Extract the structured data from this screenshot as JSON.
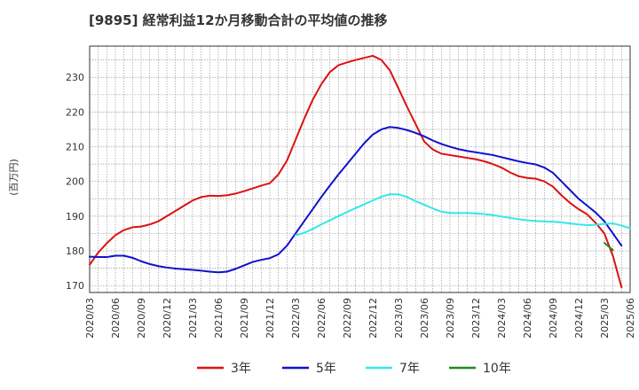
{
  "chart_data": {
    "type": "line",
    "title": "[9895]  経常利益12か月移動合計の平均値の推移",
    "ylabel": "(百万円)",
    "xlabel": "",
    "ylim": [
      168,
      239
    ],
    "yticks": [
      170,
      180,
      190,
      200,
      210,
      220,
      230
    ],
    "xticks": [
      "2020/03",
      "2020/06",
      "2020/09",
      "2020/12",
      "2021/03",
      "2021/06",
      "2021/09",
      "2021/12",
      "2022/03",
      "2022/06",
      "2022/09",
      "2022/12",
      "2023/03",
      "2023/06",
      "2023/09",
      "2023/12",
      "2024/03",
      "2024/06",
      "2024/09",
      "2024/12",
      "2025/03",
      "2025/06"
    ],
    "grid": true,
    "legend_position": "bottom",
    "series": [
      {
        "name": "3年",
        "color": "#dd1111",
        "start_index": 0,
        "values": [
          176.0,
          179.5,
          182.2,
          184.5,
          186.0,
          186.8,
          187.0,
          187.6,
          188.5,
          190.0,
          191.5,
          193.0,
          194.5,
          195.5,
          195.9,
          195.8,
          196.0,
          196.5,
          197.2,
          198.0,
          198.8,
          199.5,
          202.0,
          206.0,
          212.0,
          218.0,
          223.5,
          228.0,
          231.5,
          233.5,
          234.3,
          235.0,
          235.6,
          236.2,
          235.0,
          232.0,
          226.8,
          221.5,
          216.5,
          211.5,
          209.2,
          208.0,
          207.6,
          207.2,
          206.8,
          206.4,
          205.8,
          205.0,
          204.0,
          202.6,
          201.5,
          201.0,
          200.8,
          200.0,
          198.5,
          196.0,
          193.8,
          192.0,
          190.5,
          188.0,
          185.0,
          178.5,
          169.5
        ]
      },
      {
        "name": "5年",
        "color": "#1111cc",
        "start_index": 0,
        "values": [
          178.3,
          178.2,
          178.2,
          178.6,
          178.6,
          178.0,
          177.0,
          176.2,
          175.6,
          175.2,
          174.9,
          174.7,
          174.5,
          174.3,
          174.0,
          173.8,
          174.0,
          174.8,
          175.8,
          176.8,
          177.4,
          177.9,
          179.0,
          181.5,
          185.0,
          188.5,
          192.0,
          195.5,
          198.8,
          202.0,
          205.0,
          208.0,
          211.0,
          213.5,
          215.0,
          215.7,
          215.4,
          214.8,
          214.0,
          213.0,
          211.8,
          210.8,
          210.0,
          209.3,
          208.8,
          208.4,
          208.0,
          207.6,
          207.0,
          206.4,
          205.8,
          205.3,
          204.9,
          204.0,
          202.5,
          200.0,
          197.5,
          195.0,
          193.0,
          191.0,
          188.5,
          185.0,
          181.5
        ]
      },
      {
        "name": "7年",
        "color": "#33e8e8",
        "start_index": 24,
        "values": [
          184.5,
          185.2,
          186.3,
          187.6,
          188.8,
          190.0,
          191.2,
          192.3,
          193.4,
          194.5,
          195.6,
          196.3,
          196.3,
          195.5,
          194.3,
          193.3,
          192.2,
          191.3,
          190.9,
          190.9,
          190.9,
          190.8,
          190.6,
          190.3,
          189.9,
          189.5,
          189.1,
          188.8,
          188.6,
          188.5,
          188.4,
          188.2,
          187.9,
          187.6,
          187.4,
          187.5,
          187.8,
          187.9,
          187.3,
          186.5
        ]
      },
      {
        "name": "10年",
        "color": "#228822",
        "start_index": 60,
        "values": [
          182.3,
          180.2
        ]
      }
    ]
  }
}
